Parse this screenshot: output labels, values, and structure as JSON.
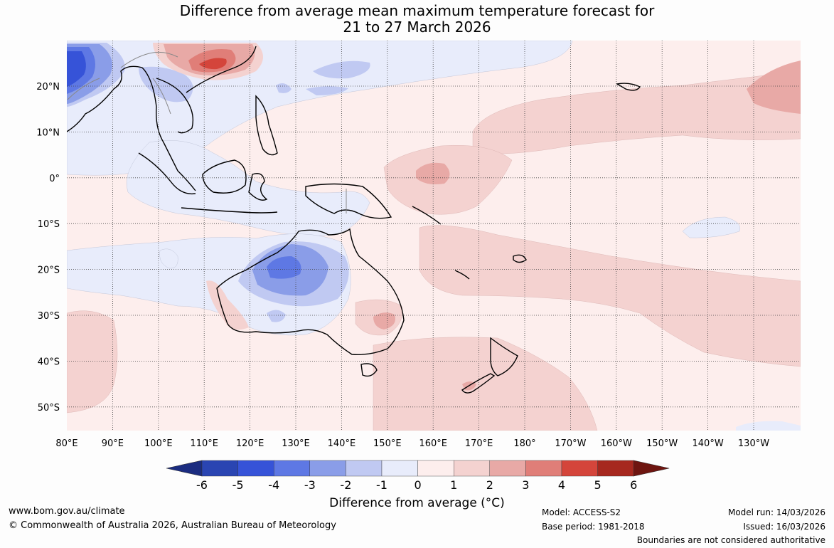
{
  "title": {
    "line1": "Difference from average mean maximum temperature forecast for",
    "line2": "21 to 27 March 2026"
  },
  "map": {
    "lat_labels": [
      "20°N",
      "10°N",
      "0°",
      "10°S",
      "20°S",
      "30°S",
      "40°S",
      "50°S"
    ],
    "lon_labels": [
      "80°E",
      "90°E",
      "100°E",
      "110°E",
      "120°E",
      "130°E",
      "140°E",
      "150°E",
      "160°E",
      "170°E",
      "180°",
      "170°W",
      "160°W",
      "150°W",
      "140°W",
      "130°W"
    ]
  },
  "colorbar": {
    "colors": [
      "#1b2c80",
      "#2a45b2",
      "#3653d8",
      "#5e78e4",
      "#8a9de8",
      "#c0c9f2",
      "#e8ecfb",
      "#fdeeed",
      "#f4d2d0",
      "#e8a9a6",
      "#e07e78",
      "#d4453b",
      "#a6281f",
      "#6e1510"
    ],
    "ticks": [
      "-6",
      "-5",
      "-4",
      "-3",
      "-2",
      "-1",
      "0",
      "1",
      "2",
      "3",
      "4",
      "5",
      "6"
    ],
    "title": "Difference from average (°C)"
  },
  "footer": {
    "site": "www.bom.gov.au/climate",
    "copyright": "© Commonwealth of Australia 2026, Australian Bureau of Meteorology",
    "model": "Model: ACCESS-S2",
    "base_period": "Base period: 1981-2018",
    "model_run": "Model run: 14/03/2026",
    "issued": "Issued: 16/03/2026",
    "disclaimer": "Boundaries are not considered authoritative"
  }
}
